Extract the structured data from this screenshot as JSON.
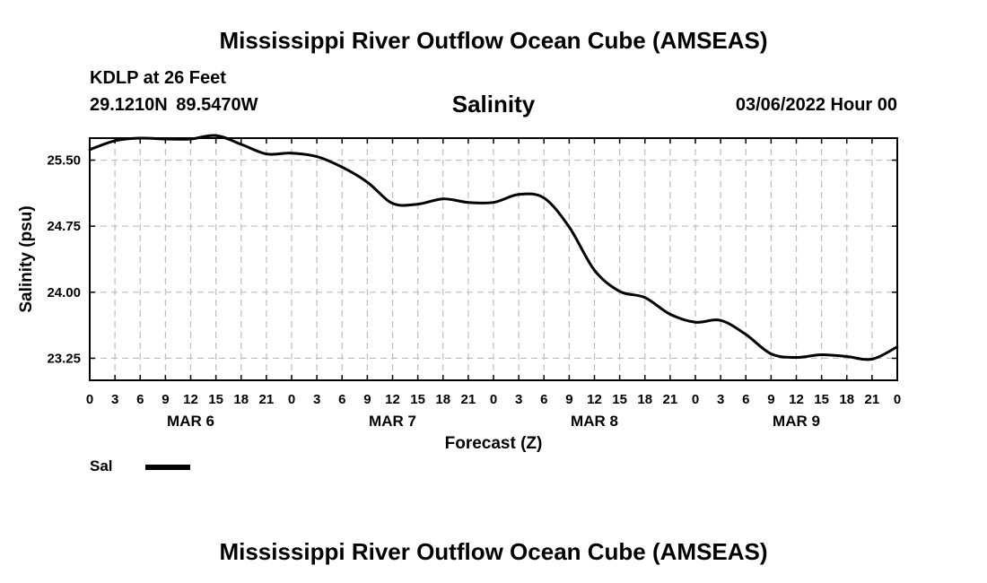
{
  "header": {
    "title": "Mississippi River Outflow Ocean Cube (AMSEAS)",
    "station": "KDLP at 26 Feet",
    "coordinates": "29.1210N 89.5470W",
    "variable": "Salinity",
    "issued": "03/06/2022 Hour 00"
  },
  "footer": {
    "title": "Mississippi River Outflow Ocean Cube (AMSEAS)"
  },
  "legend": {
    "label": "Sal",
    "color": "#000000"
  },
  "chart_data": {
    "type": "line",
    "title": "Salinity",
    "xlabel": "Forecast (Z)",
    "ylabel": "Salinity (psu)",
    "xlim": [
      0,
      96
    ],
    "ylim": [
      23.0,
      25.75
    ],
    "yticks": [
      23.25,
      24.0,
      24.75,
      25.5
    ],
    "ytick_labels": [
      "23.25",
      "24.00",
      "24.75",
      "25.50"
    ],
    "xticks": [
      0,
      3,
      6,
      9,
      12,
      15,
      18,
      21,
      24,
      27,
      30,
      33,
      36,
      39,
      42,
      45,
      48,
      51,
      54,
      57,
      60,
      63,
      66,
      69,
      72,
      75,
      78,
      81,
      84,
      87,
      90,
      93,
      96
    ],
    "xtick_labels": [
      "0",
      "3",
      "6",
      "9",
      "12",
      "15",
      "18",
      "21",
      "0",
      "3",
      "6",
      "9",
      "12",
      "15",
      "18",
      "21",
      "0",
      "3",
      "6",
      "9",
      "12",
      "15",
      "18",
      "21",
      "0",
      "3",
      "6",
      "9",
      "12",
      "15",
      "18",
      "21",
      "0"
    ],
    "day_labels": [
      {
        "x": 12,
        "label": "MAR 6"
      },
      {
        "x": 36,
        "label": "MAR 7"
      },
      {
        "x": 60,
        "label": "MAR 8"
      },
      {
        "x": 84,
        "label": "MAR 9"
      }
    ],
    "grid": true,
    "series": [
      {
        "name": "Sal",
        "color": "#000000",
        "x": [
          0,
          3,
          6,
          9,
          12,
          15,
          18,
          21,
          24,
          27,
          30,
          33,
          36,
          39,
          42,
          45,
          48,
          51,
          54,
          57,
          60,
          63,
          66,
          69,
          72,
          75,
          78,
          81,
          84,
          87,
          90,
          93,
          96
        ],
        "values": [
          25.62,
          25.72,
          25.75,
          25.74,
          25.74,
          25.78,
          25.68,
          25.57,
          25.58,
          25.54,
          25.42,
          25.25,
          25.01,
          25.0,
          25.06,
          25.02,
          25.02,
          25.11,
          25.07,
          24.74,
          24.25,
          24.01,
          23.94,
          23.75,
          23.66,
          23.68,
          23.52,
          23.3,
          23.26,
          23.29,
          23.27,
          23.24,
          23.38
        ]
      }
    ]
  }
}
